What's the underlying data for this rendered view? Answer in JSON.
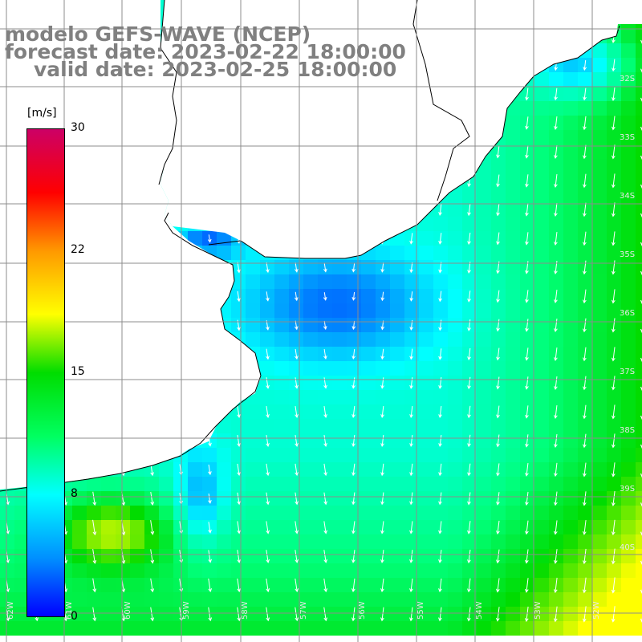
{
  "title": {
    "model": "modelo GEFS-WAVE (NCEP)",
    "forecast": "forecast date: 2023-02-22 18:00:00",
    "valid": "valid date: 2023-02-25 18:00:00"
  },
  "colorbar": {
    "unit": "[m/s]",
    "ticks": [
      "30",
      "22",
      "15",
      "8",
      "0"
    ],
    "tick_values": [
      30,
      22,
      15,
      8,
      0
    ],
    "range": [
      0,
      30
    ],
    "colors": [
      "#0000ff",
      "#0090ff",
      "#00ffff",
      "#00ff60",
      "#00dd00",
      "#ffff00",
      "#ff9900",
      "#ff0000",
      "#cc0066"
    ]
  },
  "grid": {
    "lat_labels": [
      "32S",
      "33S",
      "34S",
      "35S",
      "36S",
      "37S",
      "38S",
      "39S",
      "40S"
    ],
    "lon_labels": [
      "62W",
      "61W",
      "60W",
      "59W",
      "58W",
      "57W",
      "56W",
      "55W",
      "54W",
      "53W",
      "52W"
    ]
  },
  "colors": {
    "land": "#ffffff",
    "coast": "#000000",
    "gridline": "#8c8c8c",
    "arrow": "#ffffff",
    "title": "#808080"
  }
}
